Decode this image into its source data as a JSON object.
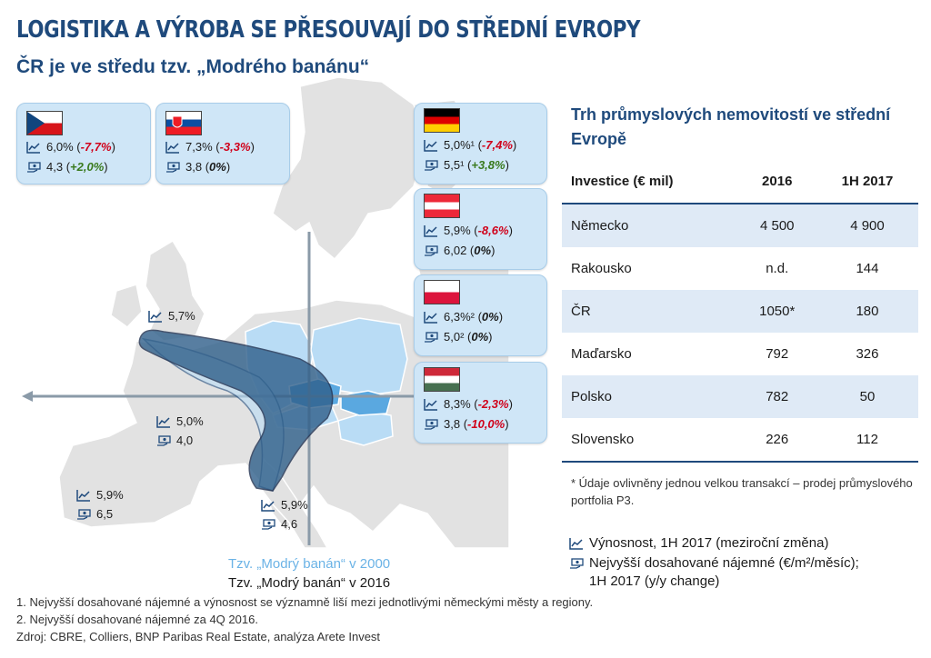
{
  "title": "LOGISTIKA A VÝROBA SE PŘESOUVAJÍ DO STŘEDNÍ EVROPY",
  "subtitle": "ČR je ve středu tzv. „Modrého banánu“",
  "colors": {
    "accent": "#1f4a7c",
    "card": "#cfe6f7",
    "negative": "#d0021b",
    "positive": "#3a7a1e",
    "banana2016": "#2f5f8a",
    "banana2000": "#b9dcf5"
  },
  "icons": {
    "yield": "trend-chart-icon",
    "rent": "money-hand-icon"
  },
  "cards": {
    "cz": {
      "country": "ČR",
      "yield": "6,0%",
      "yield_change": "-7,7%",
      "rent": "4,3",
      "rent_change": "+2,0%"
    },
    "sk": {
      "country": "Slovensko",
      "yield": "7,3%",
      "yield_change": "-3,3%",
      "rent": "3,8",
      "rent_change": "0%"
    },
    "de": {
      "country": "Německo",
      "yield": "5,0%¹",
      "yield_change": "-7,4%",
      "rent": "5,5¹",
      "rent_change": "+3,8%"
    },
    "at": {
      "country": "Rakousko",
      "yield": "5,9%",
      "yield_change": "-8,6%",
      "rent": "6,02",
      "rent_change": "0%"
    },
    "pl": {
      "country": "Polsko",
      "yield": "6,3%²",
      "yield_change": "0%",
      "rent": "5,0²",
      "rent_change": "0%"
    },
    "hu": {
      "country": "Maďarsko",
      "yield": "8,3%",
      "yield_change": "-2,3%",
      "rent": "3,8",
      "rent_change": "-10,0%"
    }
  },
  "map_labels": {
    "uk": {
      "yield": "5,7%"
    },
    "fr": {
      "yield": "5,0%",
      "rent": "4,0"
    },
    "es": {
      "yield": "5,9%",
      "rent": "6,5"
    },
    "it": {
      "yield": "5,9%",
      "rent": "4,6"
    }
  },
  "banana_labels": {
    "y2000": "Tzv. „Modrý banán“ v 2000",
    "y2016": "Tzv. „Modrý banán“ v 2016"
  },
  "table": {
    "title": "Trh průmyslových nemovitostí ve střední Evropě",
    "headers": [
      "Investice (€ mil)",
      "2016",
      "1H 2017"
    ],
    "rows": [
      {
        "country": "Německo",
        "y2016": "4 500",
        "h2017": "4 900"
      },
      {
        "country": "Rakousko",
        "y2016": "n.d.",
        "h2017": "144"
      },
      {
        "country": "ČR",
        "y2016": "1050*",
        "h2017": "180"
      },
      {
        "country": "Maďarsko",
        "y2016": "792",
        "h2017": "326"
      },
      {
        "country": "Polsko",
        "y2016": "782",
        "h2017": "50"
      },
      {
        "country": "Slovensko",
        "y2016": "226",
        "h2017": "112"
      }
    ],
    "note": "* Údaje ovlivněny jednou velkou transakcí – prodej průmyslového portfolia P3."
  },
  "legend": {
    "yield": "Výnosnost, 1H 2017 (meziroční změna)",
    "rent_line1": "Nejvyšší dosahované nájemné (€/m²/měsíc);",
    "rent_line2": "1H 2017 (y/y change)"
  },
  "footnotes": [
    "1. Nejvyšší dosahované nájemné a výnosnost se významně liší mezi jednotlivými německými městy a regiony.",
    "2. Nejvyšší dosahované nájemné za 4Q 2016.",
    "Zdroj: CBRE, Colliers, BNP Paribas Real Estate, analýza Arete Invest"
  ]
}
